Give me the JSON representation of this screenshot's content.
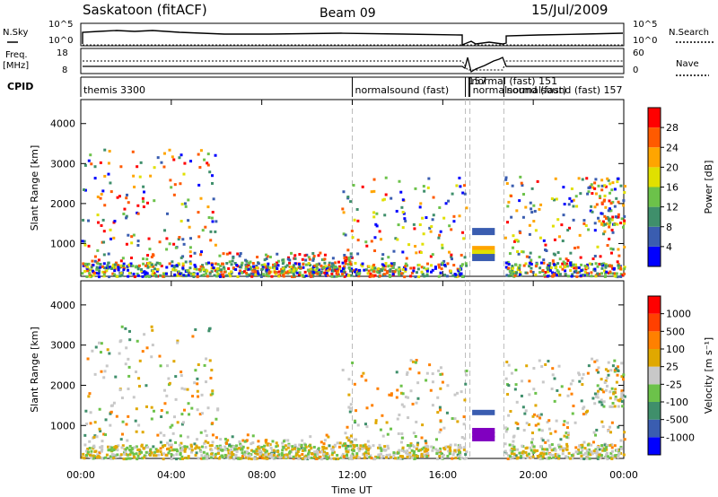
{
  "header": {
    "station": "Saskatoon (fitACF)",
    "beam": "Beam 09",
    "date": "15/Jul/2009"
  },
  "nsky_panel": {
    "left_label": "N.Sky",
    "right_label": "N.Search",
    "left_ticks": [
      "10^5",
      "10^0"
    ],
    "right_ticks": [
      "10^5",
      "10^0"
    ]
  },
  "freq_panel": {
    "left_label_1": "Freq.",
    "left_label_2": "[MHz]",
    "right_label": "Nave",
    "left_ticks": [
      "18",
      "8"
    ],
    "right_ticks": [
      "60",
      "0"
    ]
  },
  "cpid": {
    "label": "CPID",
    "modes": [
      {
        "text": "themis 3300",
        "start": 0.0
      },
      {
        "text": "normalsound (fast)",
        "start": 12.0
      },
      {
        "text": "157",
        "start": 17.0
      },
      {
        "text": "normal (fast) 151",
        "start": 17.15
      },
      {
        "text": "normalsound (fast)",
        "start": 17.2
      },
      {
        "text": "normalsound (fast) 157",
        "start": 18.7
      }
    ]
  },
  "chart_data": [
    {
      "type": "heatmap",
      "name": "power",
      "ylabel": "Slant Range [km]",
      "ylim": [
        180,
        4600
      ],
      "yticks": [
        1000,
        2000,
        3000,
        4000
      ],
      "xlim": [
        0,
        24
      ],
      "colorbar_label": "Power [dB]",
      "colorbar_ticks": [
        "28",
        "24",
        "20",
        "16",
        "12",
        "8",
        "4"
      ],
      "colorbar_colors": [
        "#0000ff",
        "#3a5db0",
        "#3f8f6b",
        "#6cc24a",
        "#e0e000",
        "#ffa500",
        "#ff5a00",
        "#ff0000"
      ],
      "scatter_regions": [
        {
          "t0": 0,
          "t1": 6,
          "r0": 200,
          "r1": 3500,
          "density": 0.55
        },
        {
          "t0": 11.5,
          "t1": 17,
          "r0": 200,
          "r1": 2700,
          "density": 0.45
        },
        {
          "t0": 6,
          "t1": 12,
          "r0": 200,
          "r1": 800,
          "density": 0.5
        },
        {
          "t0": 18.7,
          "t1": 24,
          "r0": 200,
          "r1": 2700,
          "density": 0.55
        },
        {
          "t0": 22.5,
          "t1": 24,
          "r0": 1500,
          "r1": 2700,
          "density": 0.6
        }
      ]
    },
    {
      "type": "heatmap",
      "name": "velocity",
      "ylabel": "Slant Range [km]",
      "xlabel": "Time UT",
      "ylim": [
        180,
        4600
      ],
      "yticks": [
        1000,
        2000,
        3000,
        4000
      ],
      "xlim": [
        0,
        24
      ],
      "xticks": [
        "00:00",
        "04:00",
        "08:00",
        "12:00",
        "16:00",
        "20:00",
        "00:00"
      ],
      "colorbar_label": "Velocity [m s⁻¹]",
      "colorbar_ticks": [
        "1000",
        "500",
        "100",
        "25",
        "-25",
        "-100",
        "-500",
        "-1000"
      ],
      "colorbar_colors": [
        "#0000ff",
        "#3a5db0",
        "#3f8f6b",
        "#6cc24a",
        "#c8c8c8",
        "#e0a800",
        "#ff8000",
        "#ff4000",
        "#ff0000"
      ]
    }
  ]
}
